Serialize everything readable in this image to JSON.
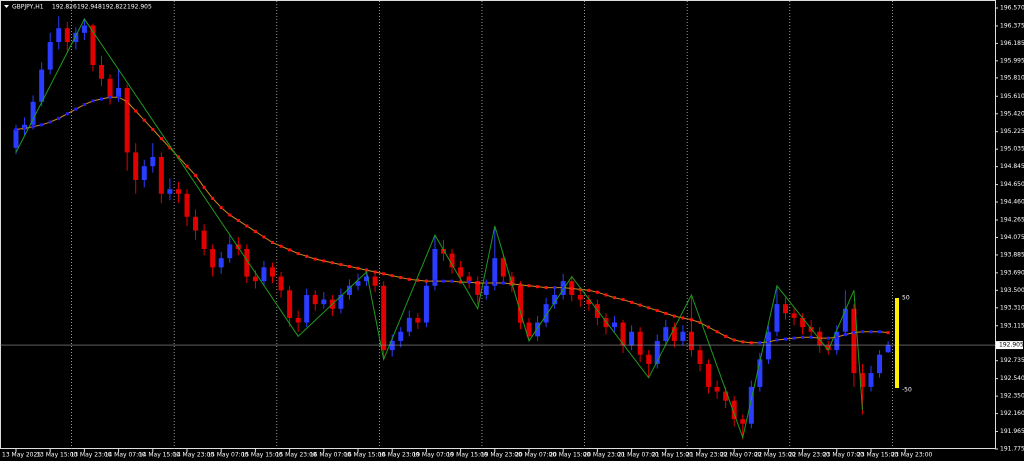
{
  "chart_data": {
    "type": "candlestick",
    "symbol": "GBPJPY,H1",
    "colors": {
      "up": "#2a3cff",
      "down": "#e00000",
      "ma": "#d08a1a",
      "ma_up": "#2020ff",
      "ma_down": "#ff1010",
      "zigzag": "#1f9a1f",
      "oscillator": "#ffee00"
    },
    "ylim": [
      191.775,
      196.57
    ],
    "yticks": [
      {
        "value": 196.57,
        "label": "196.570"
      },
      196.375,
      196.185,
      195.995,
      {
        "value": 195.81,
        "label": "195.810"
      },
      {
        "value": 195.61,
        "label": "195.610"
      },
      {
        "value": 195.42,
        "label": "195.420"
      },
      195.225,
      195.035,
      194.845,
      {
        "value": 194.65,
        "label": "194.650"
      },
      {
        "value": 194.46,
        "label": "194.460"
      },
      194.265,
      194.075,
      193.885,
      {
        "value": 193.69,
        "label": "193.690"
      },
      {
        "value": 193.5,
        "label": "193.500"
      },
      {
        "value": 193.31,
        "label": "193.310"
      },
      193.115,
      192.735,
      {
        "value": 192.54,
        "label": "192.540"
      },
      {
        "value": 192.35,
        "label": "192.350"
      },
      {
        "value": 192.16,
        "label": "192.160"
      },
      191.965,
      191.775
    ],
    "x_labels": [
      "13 May 2025",
      "13 May 15:00",
      "13 May 23:00",
      "14 May 07:00",
      "14 May 15:00",
      "14 May 23:00",
      "15 May 07:00",
      "15 May 15:00",
      "15 May 23:00",
      "16 May 07:00",
      "16 May 15:00",
      "16 May 23:00",
      "19 May 07:00",
      "19 May 15:00",
      "19 May 23:00",
      "20 May 07:00",
      "20 May 15:00",
      "20 May 23:00",
      "21 May 07:00",
      "21 May 15:00",
      "21 May 23:00",
      "22 May 07:00",
      "22 May 15:00",
      "22 May 23:00",
      "23 May 07:00",
      "23 May 15:00",
      "23 May 23:00"
    ],
    "ohlc": [
      [
        195.05,
        195.3,
        194.98,
        195.25
      ],
      [
        195.25,
        195.38,
        195.18,
        195.3
      ],
      [
        195.3,
        195.62,
        195.25,
        195.55
      ],
      [
        195.55,
        195.98,
        195.5,
        195.9
      ],
      [
        195.9,
        196.3,
        195.85,
        196.2
      ],
      [
        196.2,
        196.48,
        196.12,
        196.35
      ],
      [
        196.35,
        196.42,
        196.1,
        196.2
      ],
      [
        196.2,
        196.36,
        196.12,
        196.3
      ],
      [
        196.3,
        196.46,
        196.22,
        196.38
      ],
      [
        196.38,
        196.4,
        195.88,
        195.95
      ],
      [
        195.95,
        196.05,
        195.72,
        195.8
      ],
      [
        195.8,
        195.85,
        195.52,
        195.6
      ],
      [
        195.6,
        195.9,
        195.55,
        195.7
      ],
      [
        195.7,
        195.74,
        194.8,
        195.0
      ],
      [
        195.0,
        195.1,
        194.55,
        194.7
      ],
      [
        194.7,
        194.92,
        194.62,
        194.85
      ],
      [
        194.85,
        195.1,
        194.78,
        194.95
      ],
      [
        194.95,
        195.0,
        194.45,
        194.55
      ],
      [
        194.55,
        194.72,
        194.48,
        194.6
      ],
      [
        194.6,
        194.68,
        194.45,
        194.55
      ],
      [
        194.55,
        194.6,
        194.2,
        194.3
      ],
      [
        194.3,
        194.38,
        194.05,
        194.15
      ],
      [
        194.15,
        194.22,
        193.88,
        193.95
      ],
      [
        193.95,
        194.0,
        193.65,
        193.75
      ],
      [
        193.75,
        193.92,
        193.68,
        193.85
      ],
      [
        193.85,
        194.1,
        193.8,
        194.0
      ],
      [
        194.0,
        194.08,
        193.88,
        193.95
      ],
      [
        193.95,
        194.0,
        193.58,
        193.65
      ],
      [
        193.65,
        193.72,
        193.52,
        193.6
      ],
      [
        193.6,
        193.82,
        193.55,
        193.75
      ],
      [
        193.75,
        193.8,
        193.58,
        193.65
      ],
      [
        193.65,
        193.7,
        193.42,
        193.5
      ],
      [
        193.5,
        193.55,
        193.1,
        193.2
      ],
      [
        193.2,
        193.28,
        193.05,
        193.15
      ],
      [
        193.15,
        193.52,
        193.1,
        193.45
      ],
      [
        193.45,
        193.5,
        193.28,
        193.35
      ],
      [
        193.35,
        193.48,
        193.3,
        193.4
      ],
      [
        193.4,
        193.45,
        193.22,
        193.3
      ],
      [
        193.3,
        193.52,
        193.25,
        193.45
      ],
      [
        193.45,
        193.62,
        193.4,
        193.55
      ],
      [
        193.55,
        193.68,
        193.5,
        193.6
      ],
      [
        193.6,
        193.74,
        193.55,
        193.65
      ],
      [
        193.65,
        193.7,
        193.48,
        193.55
      ],
      [
        193.55,
        193.6,
        192.75,
        192.85
      ],
      [
        192.85,
        193.02,
        192.78,
        192.95
      ],
      [
        192.95,
        193.1,
        192.88,
        193.05
      ],
      [
        193.05,
        193.28,
        193.0,
        193.2
      ],
      [
        193.2,
        193.25,
        193.08,
        193.15
      ],
      [
        193.15,
        193.62,
        193.1,
        193.55
      ],
      [
        193.55,
        194.1,
        193.5,
        193.95
      ],
      [
        193.95,
        194.05,
        193.82,
        193.9
      ],
      [
        193.9,
        193.95,
        193.68,
        193.75
      ],
      [
        193.75,
        193.82,
        193.58,
        193.65
      ],
      [
        193.65,
        193.7,
        193.52,
        193.6
      ],
      [
        193.6,
        193.65,
        193.35,
        193.45
      ],
      [
        193.45,
        193.62,
        193.4,
        193.55
      ],
      [
        193.55,
        194.18,
        193.5,
        193.85
      ],
      [
        193.85,
        193.9,
        193.58,
        193.65
      ],
      [
        193.65,
        193.7,
        193.48,
        193.55
      ],
      [
        193.55,
        193.6,
        193.08,
        193.15
      ],
      [
        193.15,
        193.2,
        192.95,
        193.0
      ],
      [
        193.0,
        193.22,
        192.95,
        193.15
      ],
      [
        193.15,
        193.42,
        193.1,
        193.35
      ],
      [
        193.35,
        193.52,
        193.3,
        193.45
      ],
      [
        193.45,
        193.68,
        193.4,
        193.6
      ],
      [
        193.6,
        193.65,
        193.38,
        193.45
      ],
      [
        193.45,
        193.5,
        193.32,
        193.4
      ],
      [
        193.4,
        193.45,
        193.28,
        193.35
      ],
      [
        193.35,
        193.4,
        193.12,
        193.2
      ],
      [
        193.2,
        193.25,
        193.02,
        193.1
      ],
      [
        193.1,
        193.22,
        193.05,
        193.15
      ],
      [
        193.15,
        193.18,
        192.82,
        192.9
      ],
      [
        192.9,
        193.12,
        192.85,
        193.05
      ],
      [
        193.05,
        193.1,
        192.72,
        192.8
      ],
      [
        192.8,
        192.85,
        192.55,
        192.7
      ],
      [
        192.7,
        193.02,
        192.65,
        192.95
      ],
      [
        192.95,
        193.18,
        192.9,
        193.1
      ],
      [
        193.1,
        193.15,
        192.88,
        192.95
      ],
      [
        192.95,
        193.12,
        192.9,
        193.05
      ],
      [
        193.05,
        193.45,
        192.78,
        192.85
      ],
      [
        192.85,
        192.9,
        192.62,
        192.7
      ],
      [
        192.7,
        192.75,
        192.38,
        192.45
      ],
      [
        192.45,
        192.52,
        192.32,
        192.4
      ],
      [
        192.4,
        192.45,
        192.22,
        192.3
      ],
      [
        192.3,
        192.35,
        192.02,
        192.1
      ],
      [
        192.1,
        192.15,
        191.88,
        192.05
      ],
      [
        192.05,
        192.52,
        192.0,
        192.45
      ],
      [
        192.45,
        192.82,
        192.4,
        192.75
      ],
      [
        192.75,
        193.12,
        192.7,
        193.05
      ],
      [
        193.05,
        193.55,
        193.0,
        193.35
      ],
      [
        193.35,
        193.42,
        193.18,
        193.25
      ],
      [
        193.25,
        193.3,
        193.12,
        193.2
      ],
      [
        193.2,
        193.25,
        193.02,
        193.1
      ],
      [
        193.1,
        193.18,
        192.98,
        193.05
      ],
      [
        193.05,
        193.1,
        192.82,
        192.9
      ],
      [
        192.9,
        192.95,
        192.8,
        192.85
      ],
      [
        192.85,
        193.12,
        192.8,
        193.05
      ],
      [
        193.05,
        193.5,
        193.0,
        193.3
      ],
      [
        193.3,
        193.35,
        192.45,
        192.6
      ],
      [
        192.6,
        192.7,
        192.15,
        192.45
      ],
      [
        192.45,
        192.68,
        192.4,
        192.6
      ],
      [
        192.6,
        192.85,
        192.55,
        192.8
      ],
      [
        192.826,
        192.948,
        192.822,
        192.905
      ]
    ],
    "ma": [
      195.25,
      195.26,
      195.28,
      195.3,
      195.33,
      195.37,
      195.42,
      195.47,
      195.52,
      195.56,
      195.58,
      195.6,
      195.6,
      195.55,
      195.45,
      195.35,
      195.25,
      195.15,
      195.05,
      194.95,
      194.85,
      194.75,
      194.62,
      194.5,
      194.4,
      194.32,
      194.26,
      194.2,
      194.14,
      194.08,
      194.02,
      193.98,
      193.94,
      193.9,
      193.87,
      193.84,
      193.82,
      193.8,
      193.78,
      193.76,
      193.74,
      193.72,
      193.7,
      193.68,
      193.66,
      193.64,
      193.62,
      193.61,
      193.6,
      193.6,
      193.6,
      193.6,
      193.59,
      193.59,
      193.58,
      193.58,
      193.58,
      193.58,
      193.57,
      193.56,
      193.55,
      193.54,
      193.53,
      193.53,
      193.53,
      193.52,
      193.51,
      193.5,
      193.48,
      193.45,
      193.42,
      193.4,
      193.37,
      193.34,
      193.31,
      193.28,
      193.25,
      193.22,
      193.2,
      193.18,
      193.15,
      193.1,
      193.05,
      193.0,
      192.96,
      192.94,
      192.93,
      192.93,
      192.94,
      192.96,
      192.97,
      192.98,
      192.99,
      192.99,
      192.98,
      192.98,
      192.99,
      193.02,
      193.04,
      193.05,
      193.05,
      193.05,
      193.04
    ],
    "zigzag": {
      "x": [
        0,
        8,
        12,
        33,
        41,
        43,
        49,
        54,
        56,
        60,
        65,
        74,
        79,
        85,
        89,
        95,
        98,
        99
      ],
      "values": [
        195.0,
        196.45,
        195.9,
        193.0,
        193.7,
        192.75,
        194.1,
        193.3,
        194.2,
        192.95,
        193.65,
        192.55,
        193.45,
        191.9,
        193.55,
        192.85,
        193.5,
        192.2
      ]
    },
    "oscillator_levels": [
      50,
      -50
    ]
  }
}
